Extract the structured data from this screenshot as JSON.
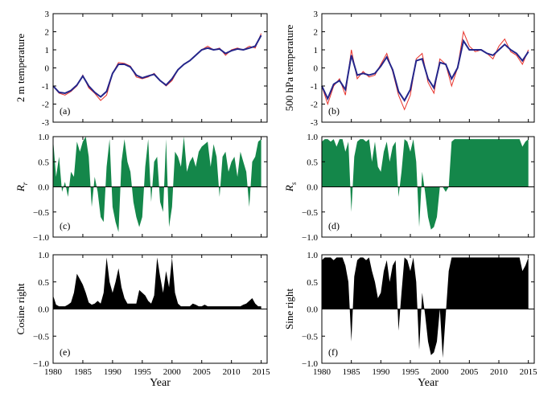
{
  "figure": {
    "xlabel": "Year",
    "x_ticks": [
      1980,
      1985,
      1990,
      1995,
      2000,
      2005,
      2010,
      2015
    ],
    "xlim": [
      1980,
      2016
    ],
    "colors": {
      "raw": "#e8332b",
      "smooth": "#24258a",
      "green": "#14874a",
      "black": "#000000",
      "zero_line": "#000000"
    }
  },
  "chart_data": [
    {
      "id": "a",
      "type": "line",
      "panel_label": "(a)",
      "ylabel": "2 m temperature",
      "ylim": [
        -3,
        3
      ],
      "y_ticks": [
        -3,
        -2,
        -1,
        0,
        1,
        2,
        3
      ],
      "x": [
        1980,
        1981,
        1982,
        1983,
        1984,
        1985,
        1986,
        1987,
        1988,
        1989,
        1990,
        1991,
        1992,
        1993,
        1994,
        1995,
        1996,
        1997,
        1998,
        1999,
        2000,
        2001,
        2002,
        2003,
        2004,
        2005,
        2006,
        2007,
        2008,
        2009,
        2010,
        2011,
        2012,
        2013,
        2014,
        2015
      ],
      "series": [
        {
          "name": "raw",
          "values": [
            -1.0,
            -1.4,
            -1.5,
            -1.3,
            -1.0,
            -0.4,
            -1.1,
            -1.4,
            -1.8,
            -1.5,
            -0.3,
            0.3,
            0.25,
            0.1,
            -0.5,
            -0.6,
            -0.5,
            -0.3,
            -0.7,
            -1.0,
            -0.7,
            -0.1,
            0.2,
            0.4,
            0.7,
            1.0,
            1.2,
            1.0,
            1.1,
            0.7,
            1.0,
            1.1,
            1.0,
            1.2,
            1.1,
            1.9
          ]
        },
        {
          "name": "smooth",
          "values": [
            -1.0,
            -1.35,
            -1.4,
            -1.25,
            -0.95,
            -0.45,
            -1.0,
            -1.35,
            -1.6,
            -1.3,
            -0.3,
            0.2,
            0.2,
            0.05,
            -0.4,
            -0.55,
            -0.45,
            -0.35,
            -0.7,
            -0.95,
            -0.6,
            -0.1,
            0.2,
            0.4,
            0.7,
            1.0,
            1.1,
            1.0,
            1.05,
            0.8,
            0.95,
            1.05,
            1.0,
            1.1,
            1.2,
            1.8
          ]
        }
      ]
    },
    {
      "id": "b",
      "type": "line",
      "panel_label": "(b)",
      "ylabel": "500 hPa temperature",
      "ylim": [
        -3,
        3
      ],
      "y_ticks": [
        -3,
        -2,
        -1,
        0,
        1,
        2,
        3
      ],
      "x": [
        1980,
        1981,
        1982,
        1983,
        1984,
        1985,
        1986,
        1987,
        1988,
        1989,
        1990,
        1991,
        1992,
        1993,
        1994,
        1995,
        1996,
        1997,
        1998,
        1999,
        2000,
        2001,
        2002,
        2003,
        2004,
        2005,
        2006,
        2007,
        2008,
        2009,
        2010,
        2011,
        2012,
        2013,
        2014,
        2015
      ],
      "series": [
        {
          "name": "raw",
          "values": [
            -1.0,
            -2.0,
            -1.0,
            -0.6,
            -1.5,
            1.0,
            -0.6,
            -0.2,
            -0.5,
            -0.4,
            0.2,
            0.8,
            -0.2,
            -1.5,
            -2.3,
            -1.5,
            0.5,
            0.8,
            -0.8,
            -1.4,
            0.5,
            0.2,
            -1.0,
            0.0,
            2.0,
            1.2,
            0.9,
            1.0,
            0.8,
            0.5,
            1.2,
            1.6,
            0.9,
            0.7,
            0.2,
            1.0
          ]
        },
        {
          "name": "smooth",
          "values": [
            -1.0,
            -1.7,
            -0.9,
            -0.7,
            -1.2,
            0.7,
            -0.4,
            -0.3,
            -0.4,
            -0.3,
            0.1,
            0.6,
            -0.1,
            -1.3,
            -1.8,
            -1.2,
            0.4,
            0.5,
            -0.6,
            -1.1,
            0.3,
            0.2,
            -0.6,
            0.0,
            1.5,
            1.0,
            1.0,
            1.0,
            0.8,
            0.7,
            1.0,
            1.3,
            1.0,
            0.8,
            0.4,
            0.9
          ]
        }
      ]
    },
    {
      "id": "c",
      "type": "area",
      "panel_label": "(c)",
      "ylabel": "R_r",
      "ylabel_main": "R",
      "ylabel_sub": "r",
      "ylim": [
        -1,
        1
      ],
      "y_ticks": [
        -1.0,
        -0.5,
        0.0,
        0.5,
        1.0
      ],
      "y_tick_labels": [
        "−1.0",
        "−0.5",
        "0.0",
        "0.5",
        "1.0"
      ],
      "fill": "green",
      "x": [
        1980,
        1980.5,
        1981,
        1981.5,
        1982,
        1982.5,
        1983,
        1983.5,
        1984,
        1984.5,
        1985,
        1985.5,
        1986,
        1986.5,
        1987,
        1987.5,
        1988,
        1988.5,
        1989,
        1989.5,
        1990,
        1990.5,
        1991,
        1991.5,
        1992,
        1992.5,
        1993,
        1993.5,
        1994,
        1994.5,
        1995,
        1995.5,
        1996,
        1996.5,
        1997,
        1997.5,
        1998,
        1998.5,
        1999,
        1999.5,
        2000,
        2000.5,
        2001,
        2001.5,
        2002,
        2002.5,
        2003,
        2003.5,
        2004,
        2004.5,
        2005,
        2005.5,
        2006,
        2006.5,
        2007,
        2007.5,
        2008,
        2008.5,
        2009,
        2009.5,
        2010,
        2010.5,
        2011,
        2011.5,
        2012,
        2012.5,
        2013,
        2013.5,
        2014,
        2014.5,
        2015
      ],
      "values": [
        0.95,
        0.2,
        0.6,
        -0.1,
        0.1,
        -0.2,
        0.3,
        0.2,
        0.9,
        0.7,
        0.9,
        1.0,
        0.6,
        -0.4,
        0.2,
        -0.1,
        -0.6,
        -0.7,
        0.4,
        0.95,
        -0.4,
        -0.7,
        -0.9,
        0.5,
        0.95,
        0.5,
        0.3,
        -0.3,
        -0.6,
        -0.8,
        -0.6,
        0.4,
        0.95,
        -0.3,
        0.5,
        0.6,
        -0.3,
        -0.5,
        0.95,
        -0.8,
        -0.4,
        0.7,
        0.6,
        0.4,
        1.0,
        0.3,
        0.5,
        0.6,
        0.4,
        0.7,
        0.8,
        0.85,
        0.9,
        0.4,
        0.85,
        0.6,
        -0.2,
        0.6,
        0.7,
        0.3,
        0.5,
        0.6,
        0.2,
        0.7,
        0.5,
        0.3,
        -0.4,
        0.5,
        0.6,
        0.9,
        0.95
      ]
    },
    {
      "id": "d",
      "type": "area",
      "panel_label": "(d)",
      "ylabel": "R_s",
      "ylabel_main": "R",
      "ylabel_sub": "s",
      "ylim": [
        -1,
        1
      ],
      "y_ticks": [
        -1.0,
        -0.5,
        0.0,
        0.5,
        1.0
      ],
      "y_tick_labels": [
        "−1.0",
        "−0.5",
        "0.0",
        "0.5",
        "1.0"
      ],
      "fill": "green",
      "x": [
        1980,
        1980.5,
        1981,
        1981.5,
        1982,
        1982.5,
        1983,
        1983.5,
        1984,
        1984.5,
        1985,
        1985.5,
        1986,
        1986.5,
        1987,
        1987.5,
        1988,
        1988.5,
        1989,
        1989.5,
        1990,
        1990.5,
        1991,
        1991.5,
        1992,
        1992.5,
        1993,
        1993.5,
        1994,
        1994.5,
        1995,
        1995.5,
        1996,
        1996.5,
        1997,
        1997.5,
        1998,
        1998.5,
        1999,
        1999.5,
        2000,
        2000.5,
        2001,
        2001.5,
        2002,
        2002.5,
        2003,
        2003.5,
        2004,
        2004.5,
        2005,
        2005.5,
        2006,
        2006.5,
        2007,
        2007.5,
        2008,
        2008.5,
        2009,
        2009.5,
        2010,
        2010.5,
        2011,
        2011.5,
        2012,
        2012.5,
        2013,
        2013.5,
        2014,
        2014.5,
        2015
      ],
      "values": [
        0.9,
        0.95,
        0.95,
        0.9,
        0.95,
        0.8,
        0.95,
        0.95,
        0.7,
        0.9,
        -0.5,
        0.6,
        0.9,
        0.95,
        0.95,
        0.9,
        0.95,
        0.5,
        0.9,
        0.4,
        0.3,
        0.7,
        0.9,
        0.5,
        0.8,
        0.9,
        -0.2,
        0.3,
        0.95,
        0.9,
        0.7,
        0.95,
        0.5,
        -0.8,
        0.3,
        -0.1,
        -0.6,
        -0.85,
        -0.8,
        -0.6,
        0.0,
        0.0,
        -0.1,
        0.0,
        0.9,
        0.95,
        0.95,
        0.95,
        0.95,
        0.95,
        0.95,
        0.95,
        0.95,
        0.95,
        0.95,
        0.95,
        0.95,
        0.95,
        0.95,
        0.95,
        0.95,
        0.95,
        0.95,
        0.95,
        0.95,
        0.95,
        0.95,
        0.95,
        0.8,
        0.9,
        0.95
      ]
    },
    {
      "id": "e",
      "type": "area",
      "panel_label": "(e)",
      "ylabel": "Cosine right",
      "ylim": [
        -1,
        1
      ],
      "y_ticks": [
        -1.0,
        -0.5,
        0.0,
        0.5,
        1.0
      ],
      "y_tick_labels": [
        "−1.0",
        "−0.5",
        "0.0",
        "0.5",
        "1.0"
      ],
      "fill": "black",
      "x": [
        1980,
        1980.5,
        1981,
        1981.5,
        1982,
        1982.5,
        1983,
        1983.5,
        1984,
        1984.5,
        1985,
        1985.5,
        1986,
        1986.5,
        1987,
        1987.5,
        1988,
        1988.5,
        1989,
        1989.5,
        1990,
        1990.5,
        1991,
        1991.5,
        1992,
        1992.5,
        1993,
        1993.5,
        1994,
        1994.5,
        1995,
        1995.5,
        1996,
        1996.5,
        1997,
        1997.5,
        1998,
        1998.5,
        1999,
        1999.5,
        2000,
        2000.5,
        2001,
        2001.5,
        2002,
        2002.5,
        2003,
        2003.5,
        2004,
        2004.5,
        2005,
        2005.5,
        2006,
        2006.5,
        2007,
        2007.5,
        2008,
        2008.5,
        2009,
        2009.5,
        2010,
        2010.5,
        2011,
        2011.5,
        2012,
        2012.5,
        2013,
        2013.5,
        2014,
        2014.5,
        2015
      ],
      "values": [
        0.25,
        0.08,
        0.05,
        0.05,
        0.05,
        0.08,
        0.12,
        0.3,
        0.65,
        0.55,
        0.45,
        0.3,
        0.12,
        0.08,
        0.1,
        0.15,
        0.1,
        0.3,
        0.95,
        0.5,
        0.3,
        0.5,
        0.75,
        0.4,
        0.2,
        0.1,
        0.1,
        0.1,
        0.1,
        0.35,
        0.3,
        0.25,
        0.15,
        0.1,
        0.25,
        0.95,
        0.6,
        0.3,
        0.7,
        0.4,
        0.95,
        0.3,
        0.1,
        0.05,
        0.05,
        0.05,
        0.05,
        0.1,
        0.08,
        0.05,
        0.05,
        0.08,
        0.05,
        0.05,
        0.05,
        0.05,
        0.05,
        0.05,
        0.05,
        0.05,
        0.05,
        0.05,
        0.05,
        0.05,
        0.08,
        0.1,
        0.15,
        0.2,
        0.1,
        0.05,
        0.05
      ]
    },
    {
      "id": "f",
      "type": "area",
      "panel_label": "(f)",
      "ylabel": "Sine right",
      "ylim": [
        -1,
        1
      ],
      "y_ticks": [
        -1.0,
        -0.5,
        0.0,
        0.5,
        1.0
      ],
      "y_tick_labels": [
        "−1.0",
        "−0.5",
        "0.0",
        "0.5",
        "1.0"
      ],
      "fill": "black",
      "x": [
        1980,
        1980.5,
        1981,
        1981.5,
        1982,
        1982.5,
        1983,
        1983.5,
        1984,
        1984.5,
        1985,
        1985.5,
        1986,
        1986.5,
        1987,
        1987.5,
        1988,
        1988.5,
        1989,
        1989.5,
        1990,
        1990.5,
        1991,
        1991.5,
        1992,
        1992.5,
        1993,
        1993.5,
        1994,
        1994.5,
        1995,
        1995.5,
        1996,
        1996.5,
        1997,
        1997.5,
        1998,
        1998.5,
        1999,
        1999.5,
        2000,
        2000.5,
        2001,
        2001.5,
        2002,
        2002.5,
        2003,
        2003.5,
        2004,
        2004.5,
        2005,
        2005.5,
        2006,
        2006.5,
        2007,
        2007.5,
        2008,
        2008.5,
        2009,
        2009.5,
        2010,
        2010.5,
        2011,
        2011.5,
        2012,
        2012.5,
        2013,
        2013.5,
        2014,
        2014.5,
        2015
      ],
      "values": [
        0.9,
        0.95,
        0.95,
        0.95,
        0.9,
        0.95,
        0.95,
        0.95,
        0.8,
        0.5,
        -0.6,
        0.6,
        0.9,
        0.95,
        0.95,
        0.9,
        0.95,
        0.7,
        0.5,
        0.2,
        0.3,
        0.7,
        0.9,
        0.5,
        0.8,
        0.9,
        -0.4,
        0.3,
        0.95,
        0.9,
        0.7,
        0.95,
        0.5,
        -0.75,
        0.3,
        -0.1,
        -0.6,
        -0.85,
        -0.8,
        -0.6,
        0.0,
        -0.9,
        -0.1,
        0.7,
        0.95,
        0.95,
        0.95,
        0.95,
        0.95,
        0.95,
        0.95,
        0.95,
        0.95,
        0.95,
        0.95,
        0.95,
        0.95,
        0.95,
        0.95,
        0.95,
        0.95,
        0.95,
        0.95,
        0.95,
        0.95,
        0.95,
        0.95,
        0.95,
        0.7,
        0.8,
        0.95
      ]
    }
  ]
}
